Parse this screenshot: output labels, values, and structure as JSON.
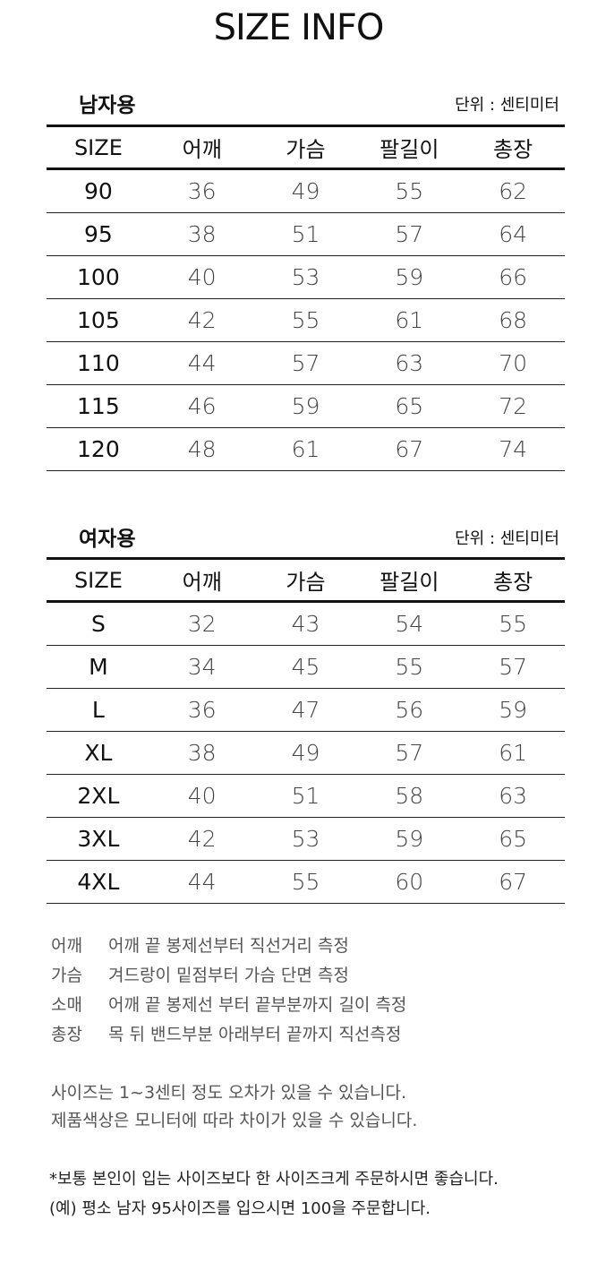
{
  "title": "SIZE INFO",
  "men": {
    "label": "남자용",
    "unit": "단위 : 센티미터",
    "headers": [
      "SIZE",
      "어깨",
      "가슴",
      "팔길이",
      "총장"
    ],
    "rows": [
      [
        "90",
        "36",
        "49",
        "55",
        "62"
      ],
      [
        "95",
        "38",
        "51",
        "57",
        "64"
      ],
      [
        "100",
        "40",
        "53",
        "59",
        "66"
      ],
      [
        "105",
        "42",
        "55",
        "61",
        "68"
      ],
      [
        "110",
        "44",
        "57",
        "63",
        "70"
      ],
      [
        "115",
        "46",
        "59",
        "65",
        "72"
      ],
      [
        "120",
        "48",
        "61",
        "67",
        "74"
      ]
    ]
  },
  "women": {
    "label": "여자용",
    "unit": "단위 : 센티미터",
    "headers": [
      "SIZE",
      "어깨",
      "가슴",
      "팔길이",
      "총장"
    ],
    "rows": [
      [
        "S",
        "32",
        "43",
        "54",
        "55"
      ],
      [
        "M",
        "34",
        "45",
        "55",
        "57"
      ],
      [
        "L",
        "36",
        "47",
        "56",
        "59"
      ],
      [
        "XL",
        "38",
        "49",
        "57",
        "61"
      ],
      [
        "2XL",
        "40",
        "51",
        "58",
        "63"
      ],
      [
        "3XL",
        "42",
        "53",
        "59",
        "65"
      ],
      [
        "4XL",
        "44",
        "55",
        "60",
        "67"
      ]
    ]
  },
  "measure_notes": [
    {
      "key": "어깨",
      "text": "어깨 끝 봉제선부터 직선거리 측정"
    },
    {
      "key": "가슴",
      "text": "겨드랑이 밑점부터 가슴 단면 측정"
    },
    {
      "key": "소매",
      "text": "어깨 끝 봉제선 부터 끝부분까지 길이 측정"
    },
    {
      "key": "총장",
      "text": "목 뒤 밴드부분 아래부터 끝까지 직선측정"
    }
  ],
  "info": [
    "사이즈는 1~3센티 정도 오차가 있을 수 있습니다.",
    "제품색상은 모니터에 따라 차이가 있을 수 있습니다."
  ],
  "tips": [
    "*보통 본인이 입는 사이즈보다 한 사이즈크게 주문하시면 좋습니다.",
    "(예)  평소 남자 95사이즈를 입으시면  100을 주문합니다."
  ]
}
